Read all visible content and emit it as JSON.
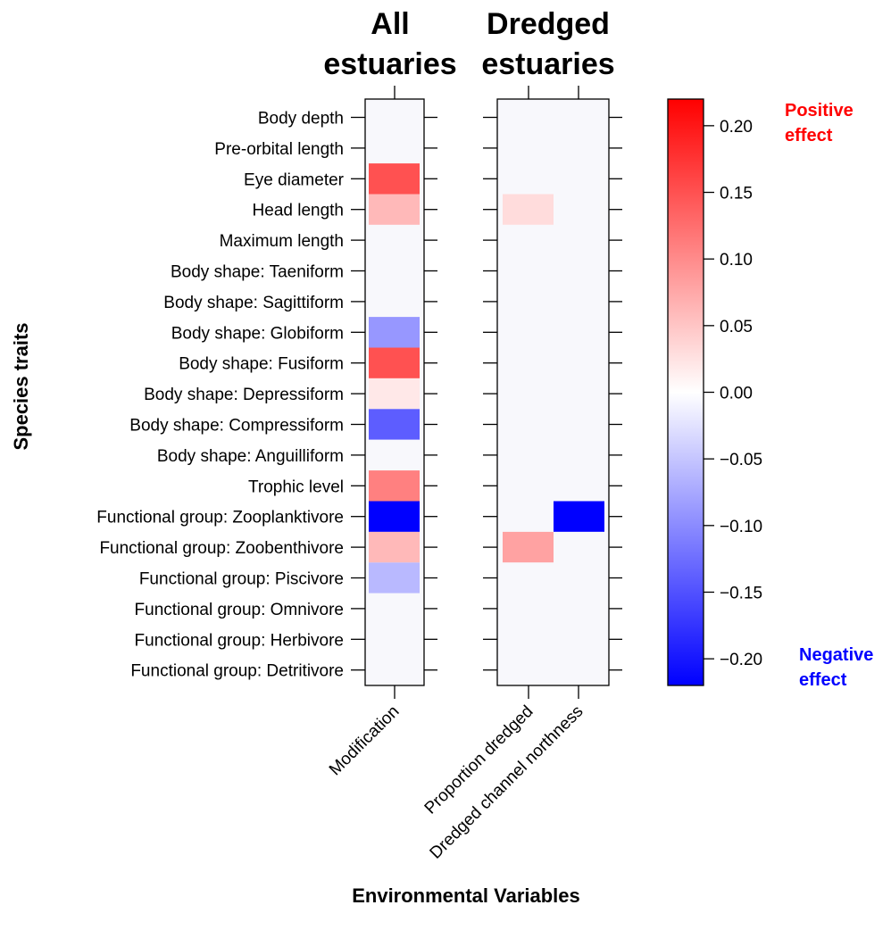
{
  "chart_data": {
    "type": "heatmap",
    "ylabel": "Species traits",
    "xlabel": "Environmental Variables",
    "traits": [
      "Body depth",
      "Pre-orbital length",
      "Eye diameter",
      "Head length",
      "Maximum length",
      "Body shape: Taeniform",
      "Body shape: Sagittiform",
      "Body shape: Globiform",
      "Body shape: Fusiform",
      "Body shape: Depressiform",
      "Body shape: Compressiform",
      "Body shape: Anguilliform",
      "Trophic level",
      "Functional group: Zooplanktivore",
      "Functional group: Zoobenthivore",
      "Functional group: Piscivore",
      "Functional group: Omnivore",
      "Functional group: Herbivore",
      "Functional group: Detritivore"
    ],
    "panels": [
      {
        "title_line1": "All",
        "title_line2": "estuaries",
        "variables": [
          "Modification"
        ],
        "values": [
          [
            0
          ],
          [
            0
          ],
          [
            0.15
          ],
          [
            0.06
          ],
          [
            0
          ],
          [
            0
          ],
          [
            0
          ],
          [
            -0.09
          ],
          [
            0.15
          ],
          [
            0.02
          ],
          [
            -0.14
          ],
          [
            0
          ],
          [
            0.11
          ],
          [
            -0.22
          ],
          [
            0.06
          ],
          [
            -0.06
          ],
          [
            0
          ],
          [
            0
          ],
          [
            0
          ]
        ]
      },
      {
        "title_line1": "Dredged",
        "title_line2": "estuaries",
        "variables": [
          "Proportion dredged",
          "Dredged channel northness"
        ],
        "values": [
          [
            0,
            0
          ],
          [
            0,
            0
          ],
          [
            0,
            0
          ],
          [
            0.03,
            0
          ],
          [
            0,
            0
          ],
          [
            0,
            0
          ],
          [
            0,
            0
          ],
          [
            0,
            0
          ],
          [
            0,
            0
          ],
          [
            0,
            0
          ],
          [
            0,
            0
          ],
          [
            0,
            0
          ],
          [
            0,
            0
          ],
          [
            0,
            -0.22
          ],
          [
            0.08,
            0
          ],
          [
            0,
            0
          ],
          [
            0,
            0
          ],
          [
            0,
            0
          ],
          [
            0,
            0
          ]
        ]
      }
    ],
    "colorbar": {
      "range": [
        -0.22,
        0.22
      ],
      "ticks": [
        "0.20",
        "0.15",
        "0.10",
        "0.05",
        "0.00",
        "−0.05",
        "−0.10",
        "−0.15",
        "−0.20"
      ],
      "tick_values": [
        0.2,
        0.15,
        0.1,
        0.05,
        0,
        -0.05,
        -0.1,
        -0.15,
        -0.2
      ],
      "low_color": "#0000ff",
      "mid_color": "#ffffff",
      "high_color": "#ff0000"
    },
    "positive_label_line1": "Positive",
    "positive_label_line2": "effect",
    "negative_label_line1": "Negative",
    "negative_label_line2": "effect",
    "positive_color": "#ff0000",
    "negative_color": "#0000ff"
  }
}
